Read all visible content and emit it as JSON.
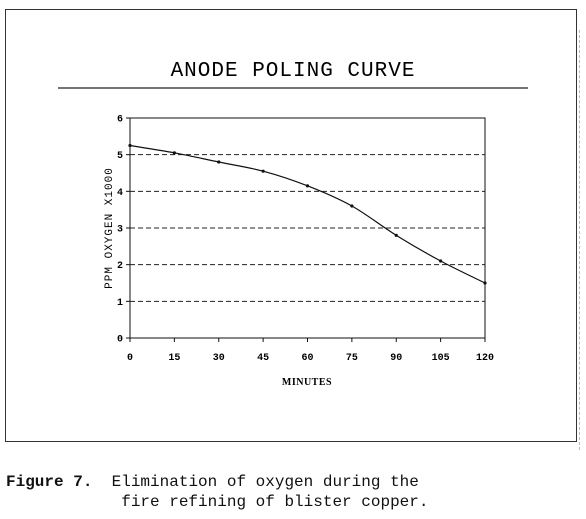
{
  "caption": {
    "label": "Figure 7.",
    "line1": "Elimination of oxygen during the",
    "line2": "fire refining of blister copper."
  },
  "chart_data": {
    "type": "line",
    "title": "ANODE POLING CURVE",
    "xlabel": "MINUTES",
    "ylabel": "PPM OXYGEN X1000",
    "xlim": [
      0,
      120
    ],
    "ylim": [
      0,
      6
    ],
    "x_ticks": [
      0,
      15,
      30,
      45,
      60,
      75,
      90,
      105,
      120
    ],
    "y_ticks": [
      0,
      1,
      2,
      3,
      4,
      5,
      6
    ],
    "grid": "horizontal dashed",
    "series": [
      {
        "x": [
          0,
          15,
          30,
          45,
          60,
          75,
          90,
          105,
          120
        ],
        "y": [
          5.25,
          5.05,
          4.8,
          4.55,
          4.15,
          3.6,
          2.8,
          2.1,
          1.5
        ]
      }
    ]
  }
}
